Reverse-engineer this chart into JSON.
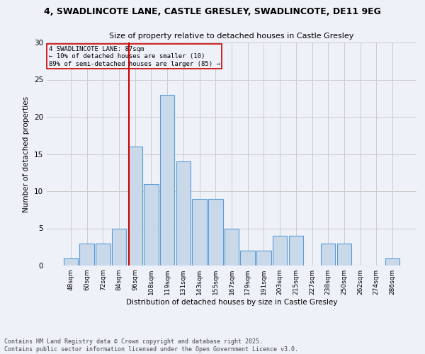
{
  "title_line1": "4, SWADLINCOTE LANE, CASTLE GRESLEY, SWADLINCOTE, DE11 9EG",
  "title_line2": "Size of property relative to detached houses in Castle Gresley",
  "xlabel": "Distribution of detached houses by size in Castle Gresley",
  "ylabel": "Number of detached properties",
  "categories": [
    "48sqm",
    "60sqm",
    "72sqm",
    "84sqm",
    "96sqm",
    "108sqm",
    "119sqm",
    "131sqm",
    "143sqm",
    "155sqm",
    "167sqm",
    "179sqm",
    "191sqm",
    "203sqm",
    "215sqm",
    "227sqm",
    "238sqm",
    "250sqm",
    "262sqm",
    "274sqm",
    "286sqm"
  ],
  "values": [
    1,
    3,
    3,
    5,
    16,
    11,
    23,
    14,
    9,
    9,
    5,
    2,
    2,
    4,
    4,
    0,
    3,
    3,
    0,
    0,
    1
  ],
  "bar_color": "#c9d9ea",
  "bar_edge_color": "#5b9bd5",
  "grid_color": "#cccccc",
  "bg_color": "#eef2f8",
  "annotation_box_color": "#cc0000",
  "vline_color": "#cc0000",
  "vline_position": 3.6,
  "annotation_text_line1": "4 SWADLINCOTE LANE: 87sqm",
  "annotation_text_line2": "← 10% of detached houses are smaller (10)",
  "annotation_text_line3": "89% of semi-detached houses are larger (85) →",
  "footnote_line1": "Contains HM Land Registry data © Crown copyright and database right 2025.",
  "footnote_line2": "Contains public sector information licensed under the Open Government Licence v3.0.",
  "ylim": [
    0,
    30
  ],
  "yticks": [
    0,
    5,
    10,
    15,
    20,
    25,
    30
  ]
}
